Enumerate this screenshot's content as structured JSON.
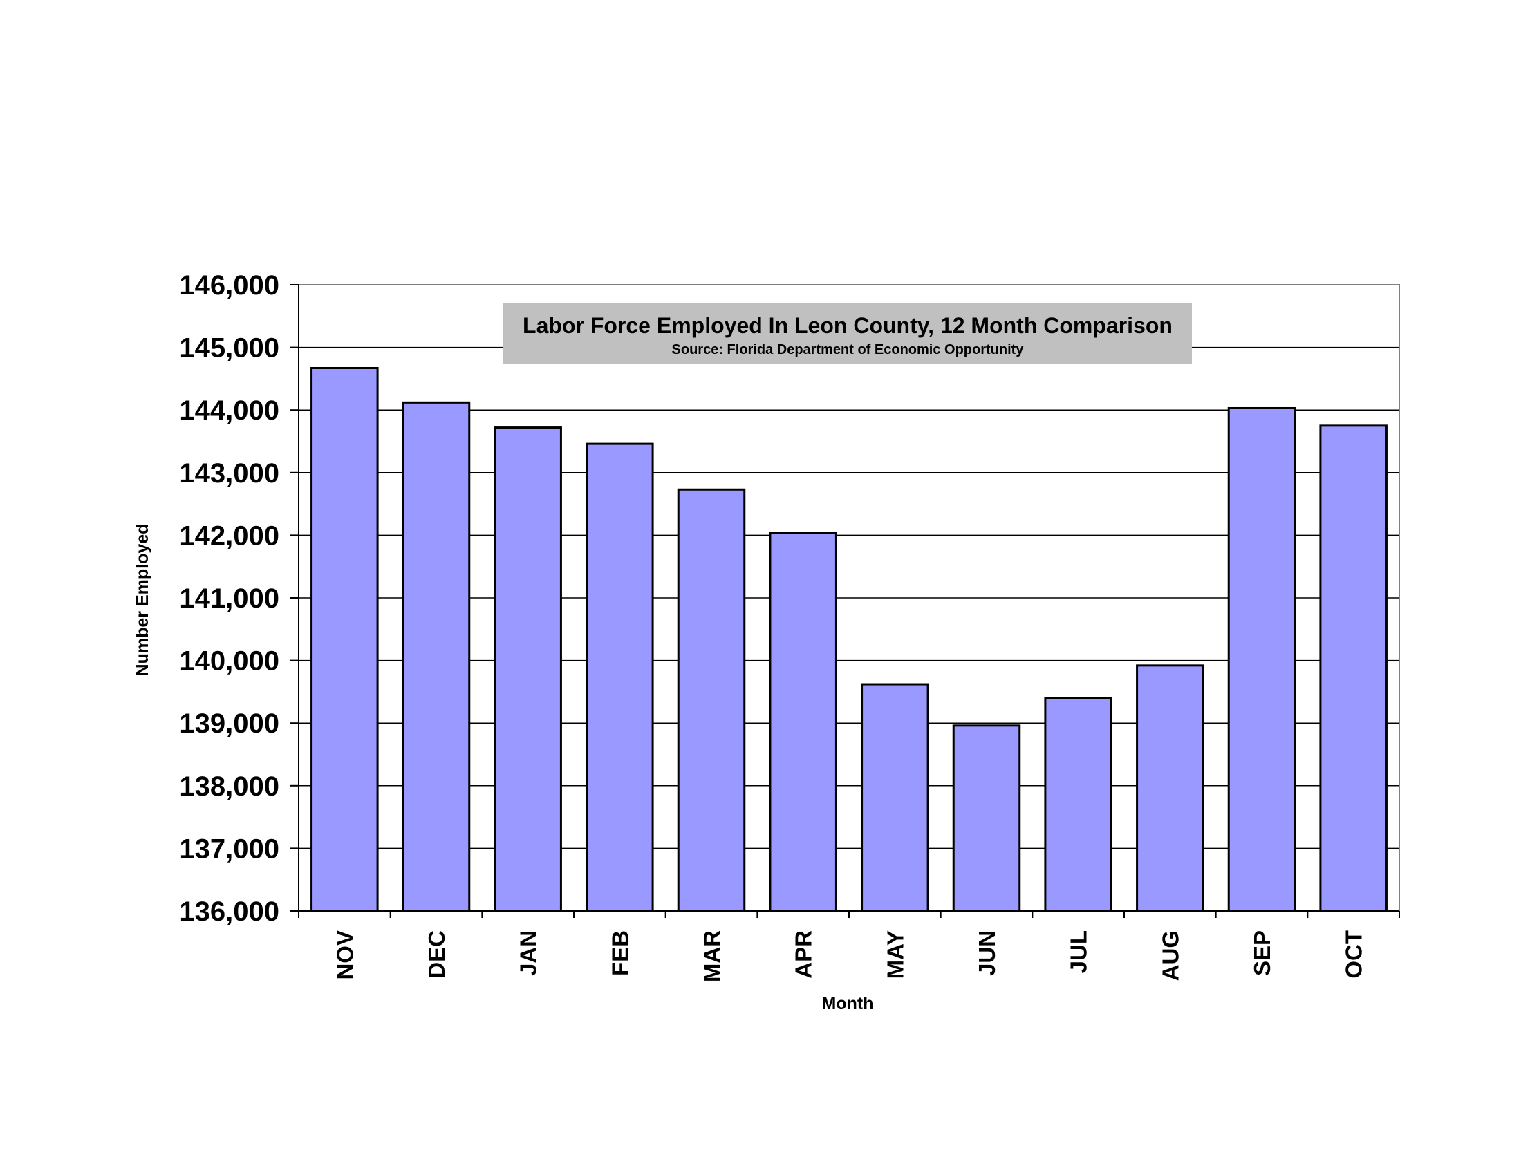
{
  "chart_data": {
    "type": "bar",
    "title": "Labor Force Employed In Leon County, 12 Month Comparison",
    "subtitle": "Source: Florida Department of Economic Opportunity",
    "xlabel": "Month",
    "ylabel": "Number Employed",
    "ylim": [
      136000,
      146000
    ],
    "yticks": [
      "136,000",
      "137,000",
      "138,000",
      "139,000",
      "140,000",
      "141,000",
      "142,000",
      "143,000",
      "144,000",
      "145,000",
      "146,000"
    ],
    "categories": [
      "NOV",
      "DEC",
      "JAN",
      "FEB",
      "MAR",
      "APR",
      "MAY",
      "JUN",
      "JUL",
      "AUG",
      "SEP",
      "OCT"
    ],
    "values": [
      144670,
      144120,
      143720,
      143460,
      142730,
      142040,
      139620,
      138960,
      139400,
      139920,
      144030,
      143750
    ],
    "grid": true,
    "colors": {
      "bar": "#9999ff",
      "bar_stroke": "#000000",
      "title_box": "#c0c0c0",
      "grid": "#000000",
      "plot_border": "#808080"
    }
  }
}
